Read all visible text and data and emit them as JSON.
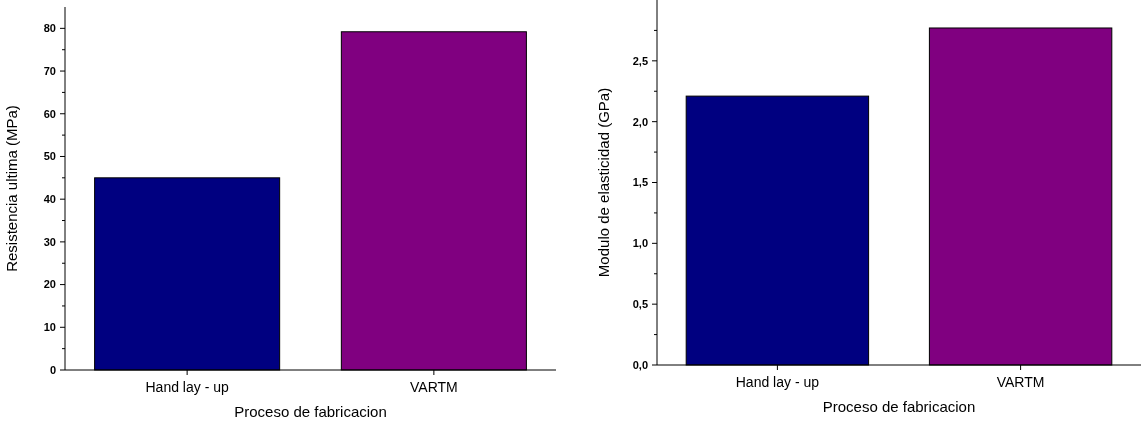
{
  "chart_data": [
    {
      "type": "bar",
      "xlabel": "Proceso de fabricacion",
      "ylabel": "Resistencia ultima (MPa)",
      "categories": [
        "Hand lay - up",
        "VARTM"
      ],
      "colors": [
        "#000080",
        "#800080"
      ],
      "values": [
        45,
        79.2
      ],
      "ylim": [
        0,
        85
      ],
      "yticks": [
        0,
        {
          "value": 5,
          "label": null
        },
        10,
        {
          "value": 15,
          "label": null
        },
        20,
        {
          "value": 25,
          "label": null
        },
        30,
        {
          "value": 35,
          "label": null
        },
        40,
        {
          "value": 45,
          "label": null
        },
        50,
        {
          "value": 55,
          "label": null
        },
        60,
        {
          "value": 65,
          "label": null
        },
        70,
        {
          "value": 75,
          "label": null
        },
        80
      ]
    },
    {
      "type": "bar",
      "xlabel": "Proceso de fabricacion",
      "ylabel": "Modulo de elasticidad (GPa)",
      "categories": [
        "Hand lay - up",
        "VARTM"
      ],
      "colors": [
        "#000080",
        "#800080"
      ],
      "values": [
        2.21,
        2.77
      ],
      "ylim": [
        0,
        3.0
      ],
      "yticks": [
        {
          "value": 0,
          "label": "0,0"
        },
        {
          "value": 0.25,
          "label": null
        },
        {
          "value": 0.5,
          "label": "0,5"
        },
        {
          "value": 0.75,
          "label": null
        },
        {
          "value": 1,
          "label": "1,0"
        },
        {
          "value": 1.25,
          "label": null
        },
        {
          "value": 1.5,
          "label": "1,5"
        },
        {
          "value": 1.75,
          "label": null
        },
        {
          "value": 2,
          "label": "2,0"
        },
        {
          "value": 2.25,
          "label": null
        },
        {
          "value": 2.5,
          "label": "2,5"
        },
        {
          "value": 2.75,
          "label": null
        }
      ]
    }
  ]
}
